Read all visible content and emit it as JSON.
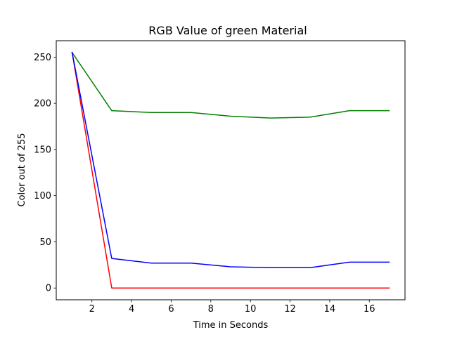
{
  "chart_data": {
    "type": "line",
    "title": "RGB Value of green Material",
    "xlabel": "Time in Seconds",
    "ylabel": "Color out of 255",
    "x": [
      1,
      3,
      5,
      7,
      9,
      11,
      13,
      15,
      17
    ],
    "series": [
      {
        "color": "#ff0000",
        "values": [
          255,
          0,
          0,
          0,
          0,
          0,
          0,
          0,
          0
        ]
      },
      {
        "color": "#008000",
        "values": [
          255,
          192,
          190,
          190,
          186,
          184,
          185,
          192,
          192
        ]
      },
      {
        "color": "#0000ff",
        "values": [
          255,
          32,
          27,
          27,
          23,
          22,
          22,
          28,
          28
        ]
      }
    ],
    "xlim": [
      0.2,
      17.8
    ],
    "ylim": [
      -12.75,
      267.75
    ],
    "xticks": [
      2,
      4,
      6,
      8,
      10,
      12,
      14,
      16
    ],
    "yticks": [
      0,
      50,
      100,
      150,
      200,
      250
    ],
    "grid": false,
    "legend": "none"
  }
}
